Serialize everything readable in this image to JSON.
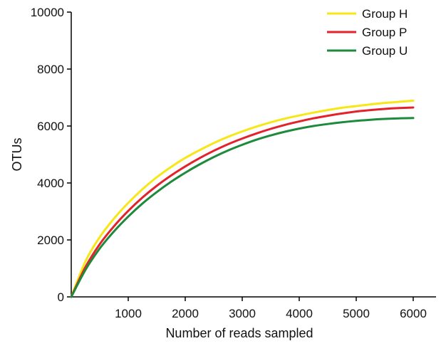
{
  "chart_data": {
    "type": "line",
    "title": "",
    "xlabel": "Number of reads sampled",
    "ylabel": "OTUs",
    "xlim": [
      0,
      6400
    ],
    "ylim": [
      0,
      10000
    ],
    "xticks": [
      1000,
      2000,
      3000,
      4000,
      5000,
      6000
    ],
    "yticks": [
      0,
      2000,
      4000,
      6000,
      8000,
      10000
    ],
    "grid": false,
    "legend_position": "top-right",
    "x": [
      0,
      250,
      500,
      750,
      1000,
      1250,
      1500,
      1750,
      2000,
      2250,
      2500,
      2750,
      3000,
      3250,
      3500,
      3750,
      4000,
      4250,
      4500,
      4750,
      5000,
      5250,
      5500,
      5750,
      6000
    ],
    "series": [
      {
        "name": "Group H",
        "color": "#f7e716",
        "values": [
          0,
          1250,
          2100,
          2750,
          3300,
          3780,
          4200,
          4560,
          4880,
          5150,
          5400,
          5620,
          5810,
          5980,
          6130,
          6260,
          6370,
          6470,
          6560,
          6640,
          6700,
          6760,
          6810,
          6850,
          6890
        ]
      },
      {
        "name": "Group P",
        "color": "#e3222b",
        "values": [
          0,
          1050,
          1850,
          2480,
          3020,
          3490,
          3900,
          4260,
          4580,
          4870,
          5130,
          5360,
          5560,
          5740,
          5900,
          6040,
          6160,
          6270,
          6360,
          6440,
          6510,
          6560,
          6600,
          6630,
          6650
        ]
      },
      {
        "name": "Group U",
        "color": "#1d8a3c",
        "values": [
          0,
          950,
          1700,
          2300,
          2820,
          3280,
          3680,
          4040,
          4360,
          4650,
          4910,
          5140,
          5340,
          5520,
          5670,
          5800,
          5910,
          6000,
          6070,
          6130,
          6180,
          6220,
          6250,
          6270,
          6280
        ]
      }
    ]
  }
}
